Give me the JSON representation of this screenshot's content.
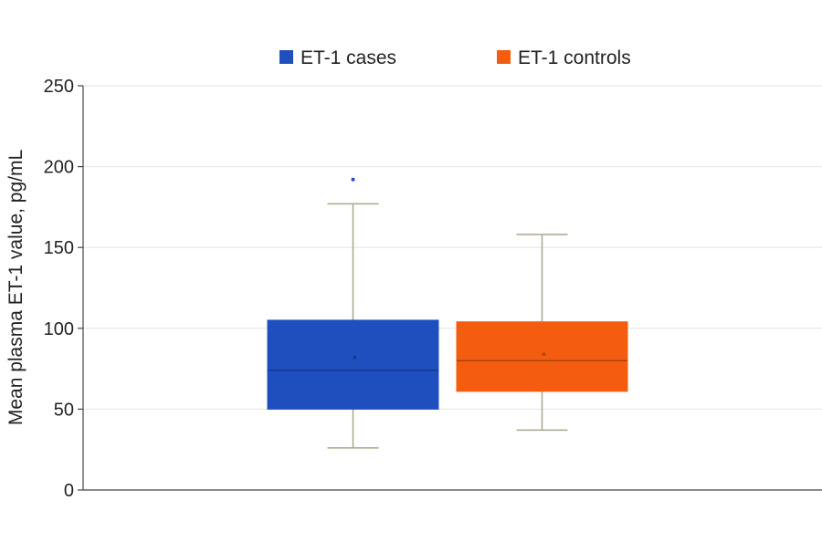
{
  "chart_data": {
    "type": "boxplot",
    "title": "",
    "xlabel": "",
    "ylabel": "Mean plasma ET-1 value, pg/mL",
    "ylim": [
      0,
      250
    ],
    "yticks": [
      0,
      50,
      100,
      150,
      200,
      250
    ],
    "grid": true,
    "legend_position": "top",
    "series": [
      {
        "name": "ET-1 cases",
        "color": "#1f4fbf",
        "whisker_low": 26,
        "q1": 50,
        "median": 74,
        "mean": 82,
        "q3": 105,
        "whisker_high": 177,
        "outliers": [
          192
        ]
      },
      {
        "name": "ET-1 controls",
        "color": "#f45d0f",
        "whisker_low": 37,
        "q1": 61,
        "median": 80,
        "mean": 84,
        "q3": 104,
        "whisker_high": 158,
        "outliers": []
      }
    ]
  }
}
